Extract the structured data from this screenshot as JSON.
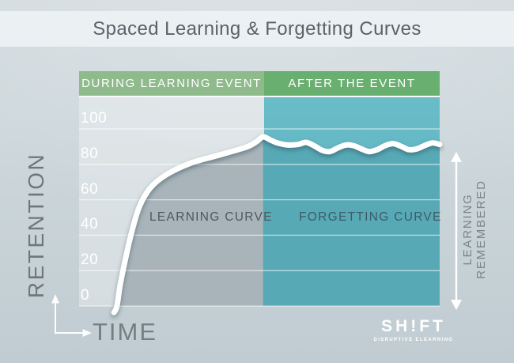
{
  "title": "Spaced Learning & Forgetting Curves",
  "bands": {
    "left": "DURING LEARNING EVENT",
    "right": "AFTER THE EVENT"
  },
  "axis": {
    "y_label": "RETENTION",
    "x_label": "TIME",
    "right_label": "LEARNING REMEMBERED"
  },
  "regions": {
    "learning": "LEARNING CURVE",
    "forgetting": "FORGETTING CURVE"
  },
  "logo": {
    "name": "SH!FT",
    "tagline": "DISRUPTIVE ELEARNING"
  },
  "colors": {
    "page_bg": "#ccd6da",
    "title_strip_bg": "#eff4f6",
    "band_during_green": "#8eba8c",
    "band_after_green": "#69af70",
    "after_panel_teal": "#62b7c3",
    "learning_fill_gray": "#a9b4ba",
    "forgetting_fill_teal": "#57a9b6",
    "curve": "#ffffff",
    "gridline": "#ffffff",
    "dark_text": "#5a646a"
  },
  "chart_data": {
    "type": "area",
    "title": "Spaced Learning & Forgetting Curves",
    "xlabel": "TIME",
    "ylabel": "RETENTION",
    "ylim": [
      0,
      100
    ],
    "yticks": [
      100,
      80,
      60,
      40,
      20,
      0
    ],
    "grid": true,
    "x_ticks_shown": false,
    "phase_split_t": 51,
    "phases": [
      {
        "label": "DURING LEARNING EVENT",
        "t_range": [
          0,
          51
        ]
      },
      {
        "label": "AFTER THE EVENT",
        "t_range": [
          51,
          100
        ]
      }
    ],
    "series": [
      {
        "name": "LEARNING CURVE",
        "x": [
          10.5,
          11.4,
          12.7,
          14.5,
          16.7,
          19.7,
          24.1,
          30.7,
          38.4,
          46.1,
          49.0,
          51.0
        ],
        "y": [
          0,
          12,
          25,
          41,
          56,
          66.5,
          74,
          80.5,
          85,
          89.5,
          92.5,
          95.5
        ]
      },
      {
        "name": "FORGETTING CURVE",
        "x": [
          51.0,
          53.0,
          55.0,
          57.7,
          60.7,
          62.9,
          65.1,
          67.3,
          69.5,
          71.7,
          73.9,
          76.1,
          78.3,
          80.5,
          82.7,
          84.9,
          87.1,
          89.3,
          91.4,
          93.6,
          95.8,
          98.0,
          100.0
        ],
        "y": [
          95.5,
          93.8,
          92.1,
          91.0,
          91.2,
          92.4,
          90.6,
          88.0,
          87.2,
          89.2,
          90.9,
          90.6,
          88.7,
          87.2,
          88.3,
          90.6,
          91.7,
          90.2,
          88.3,
          88.7,
          90.6,
          92.1,
          91.2
        ]
      }
    ],
    "annotations": [
      {
        "label": "LEARNING REMEMBERED",
        "type": "vertical-double-arrow",
        "r_range": [
          0,
          85
        ]
      }
    ]
  }
}
